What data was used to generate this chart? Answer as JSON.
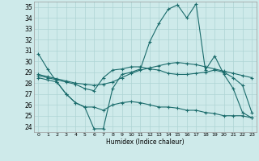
{
  "xlabel": "Humidex (Indice chaleur)",
  "bg_color": "#ceeaea",
  "grid_color": "#aed4d4",
  "line_color": "#1a6b6b",
  "xlim": [
    -0.5,
    23.5
  ],
  "ylim": [
    23.5,
    35.5
  ],
  "yticks": [
    24,
    25,
    26,
    27,
    28,
    29,
    30,
    31,
    32,
    33,
    34,
    35
  ],
  "xticks": [
    0,
    1,
    2,
    3,
    4,
    5,
    6,
    7,
    8,
    9,
    10,
    11,
    12,
    13,
    14,
    15,
    16,
    17,
    18,
    19,
    20,
    21,
    22,
    23
  ],
  "line1_x": [
    0,
    1,
    2,
    3,
    4,
    5,
    6,
    7,
    8,
    9,
    10,
    11,
    12,
    13,
    14,
    15,
    16,
    17,
    18,
    19,
    20,
    21,
    22,
    23
  ],
  "line1_y": [
    30.7,
    29.3,
    28.1,
    27.0,
    26.2,
    25.8,
    23.8,
    23.8,
    27.5,
    28.8,
    29.0,
    29.3,
    31.8,
    33.5,
    34.8,
    35.2,
    34.0,
    35.3,
    29.2,
    30.5,
    28.8,
    27.5,
    25.3,
    24.8
  ],
  "line2_x": [
    0,
    1,
    2,
    3,
    4,
    5,
    6,
    7,
    8,
    9,
    10,
    11,
    12,
    13,
    14,
    15,
    16,
    17,
    18,
    19,
    20,
    21,
    22,
    23
  ],
  "line2_y": [
    28.8,
    28.6,
    28.4,
    28.2,
    28.0,
    27.9,
    27.8,
    27.9,
    28.1,
    28.5,
    28.9,
    29.2,
    29.4,
    29.6,
    29.8,
    29.9,
    29.8,
    29.7,
    29.5,
    29.3,
    29.1,
    28.9,
    28.7,
    28.5
  ],
  "line3_x": [
    0,
    1,
    2,
    3,
    4,
    5,
    6,
    7,
    8,
    9,
    10,
    11,
    12,
    13,
    14,
    15,
    16,
    17,
    18,
    19,
    20,
    21,
    22,
    23
  ],
  "line3_y": [
    28.7,
    28.5,
    28.3,
    28.1,
    27.9,
    27.5,
    27.3,
    28.5,
    29.2,
    29.3,
    29.5,
    29.5,
    29.3,
    29.2,
    28.9,
    28.8,
    28.8,
    28.9,
    29.0,
    29.2,
    29.0,
    28.5,
    27.8,
    25.3
  ],
  "line4_x": [
    0,
    1,
    2,
    3,
    4,
    5,
    6,
    7,
    8,
    9,
    10,
    11,
    12,
    13,
    14,
    15,
    16,
    17,
    18,
    19,
    20,
    21,
    22,
    23
  ],
  "line4_y": [
    28.5,
    28.3,
    28.1,
    27.0,
    26.2,
    25.8,
    25.8,
    25.5,
    26.0,
    26.2,
    26.3,
    26.2,
    26.0,
    25.8,
    25.8,
    25.7,
    25.5,
    25.5,
    25.3,
    25.2,
    25.0,
    25.0,
    25.0,
    24.8
  ]
}
